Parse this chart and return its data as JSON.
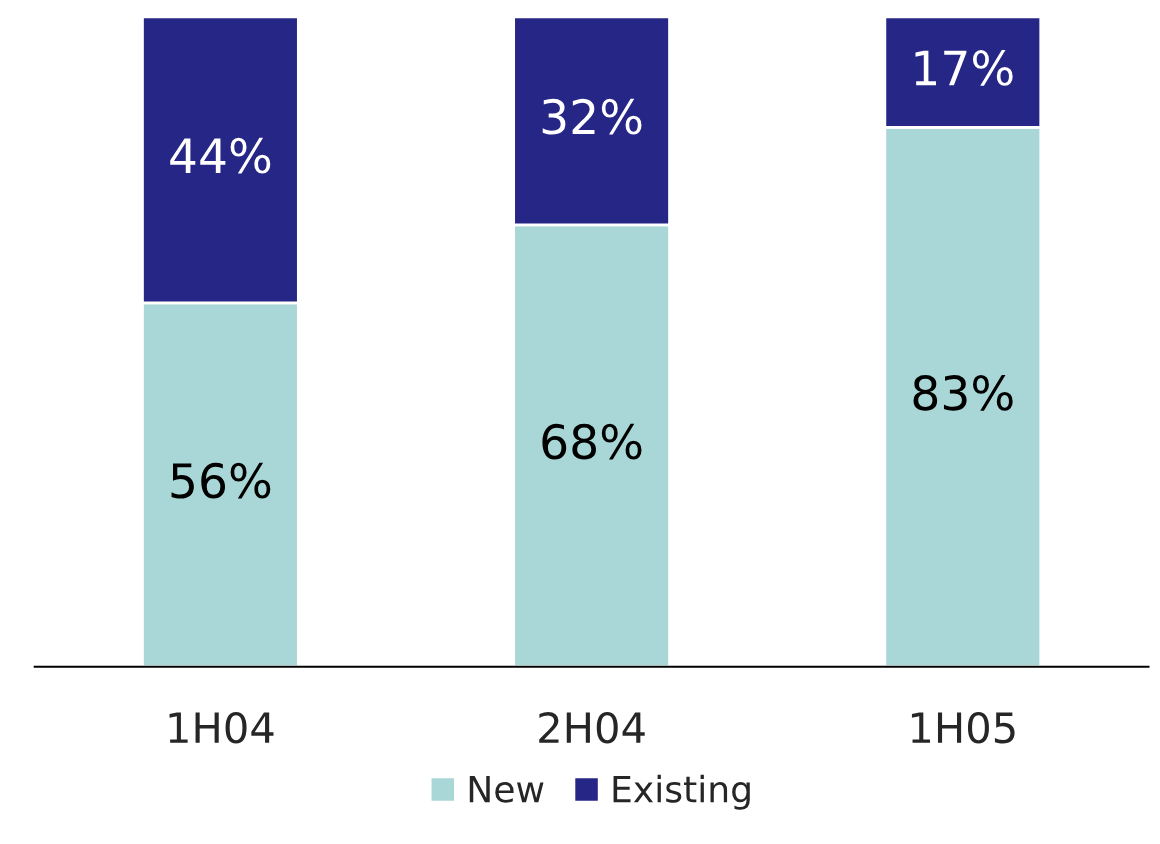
{
  "chart_data": {
    "type": "bar",
    "stacked": true,
    "categories": [
      "1H04",
      "2H04",
      "1H05"
    ],
    "series": [
      {
        "name": "New",
        "color": "#a9d6d6",
        "values": [
          56,
          68,
          83
        ],
        "value_labels": [
          "56%",
          "68%",
          "83%"
        ]
      },
      {
        "name": "Existing",
        "color": "#262687",
        "values": [
          44,
          32,
          17
        ],
        "value_labels": [
          "44%",
          "32%",
          "17%"
        ]
      }
    ],
    "legend": "bottom"
  }
}
